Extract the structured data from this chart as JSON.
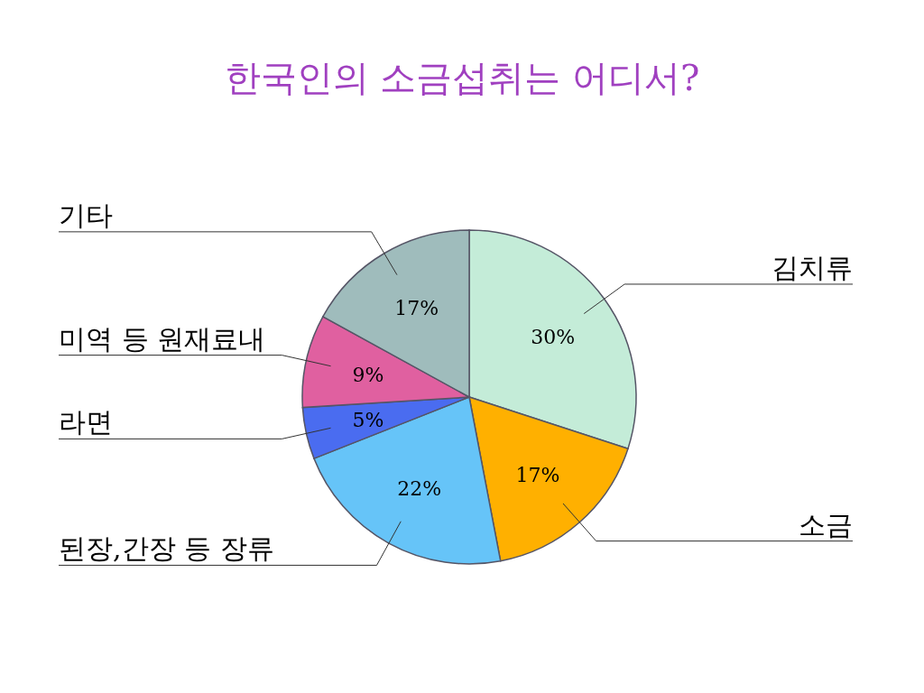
{
  "chart_data": {
    "type": "pie",
    "title": "한국인의 소금섭취는 어디서?",
    "categories": [
      "김치류",
      "소금",
      "된장,간장 등 장류",
      "라면",
      "미역 등 원재료내",
      "기타"
    ],
    "values": [
      30,
      17,
      22,
      5,
      9,
      17
    ],
    "colors": [
      "#c4ecd8",
      "#ffb000",
      "#66c4f8",
      "#4a6cf0",
      "#e060a0",
      "#9fbcbc"
    ],
    "value_labels": [
      "30%",
      "17%",
      "22%",
      "5%",
      "9%",
      "17%"
    ]
  }
}
